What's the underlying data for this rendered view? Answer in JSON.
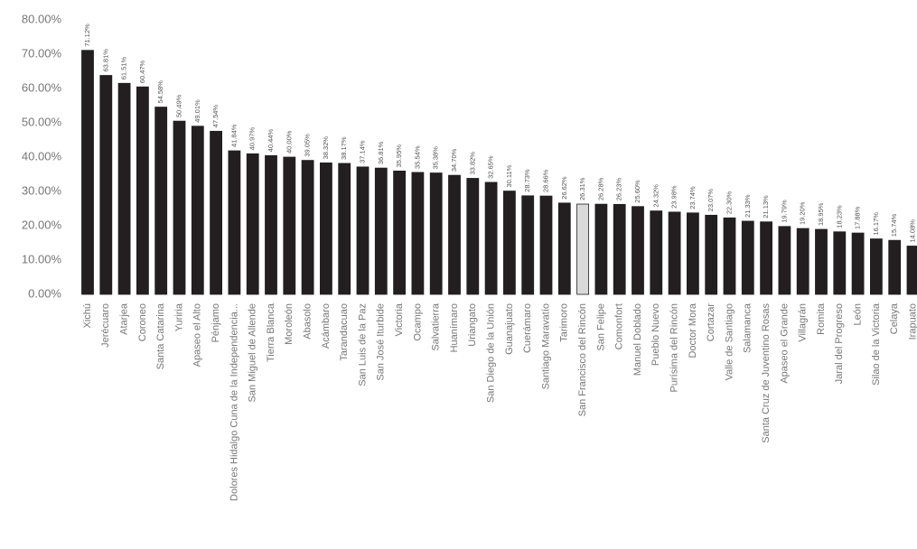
{
  "chart_data": {
    "type": "bar",
    "categories": [
      "Xichú",
      "Jerécuaro",
      "Atarjea",
      "Coroneo",
      "Santa Catarina",
      "Yuriria",
      "Apaseo el Alto",
      "Pénjamo",
      "Dolores Hidalgo Cuna de la Independencia...",
      "San Miguel de Allende",
      "Tierra Blanca",
      "Moroleón",
      "Abasolo",
      "Acámbaro",
      "Tarandacuao",
      "San Luis de la Paz",
      "San José Iturbide",
      "Victoria",
      "Ocampo",
      "Salvatierra",
      "Huanímaro",
      "Uriangato",
      "San Diego de la Unión",
      "Guanajuato",
      "Cuerámaro",
      "Santiago Maravatío",
      "Tarimoro",
      "San Francisco del Rincón",
      "San Felipe",
      "Comonfort",
      "Manuel Doblado",
      "Pueblo Nuevo",
      "Purísima del Rincón",
      "Doctor Mora",
      "Cortazar",
      "Valle de Santiago",
      "Salamanca",
      "Santa Cruz de Juventino Rosas",
      "Apaseo el Grande",
      "Villagrán",
      "Romita",
      "Jaral del Progreso",
      "León",
      "Silao de la Victoria",
      "Celaya",
      "Irapuato"
    ],
    "values": [
      71.12,
      63.81,
      61.51,
      60.47,
      54.58,
      50.49,
      49.01,
      47.54,
      41.84,
      40.97,
      40.44,
      40.0,
      39.05,
      38.32,
      38.17,
      37.14,
      36.81,
      35.95,
      35.54,
      35.38,
      34.7,
      33.82,
      32.65,
      30.11,
      28.73,
      28.66,
      26.62,
      26.31,
      26.28,
      26.23,
      25.6,
      24.32,
      23.98,
      23.74,
      23.07,
      22.3,
      21.33,
      21.13,
      19.79,
      19.2,
      18.95,
      18.23,
      17.88,
      16.17,
      15.74,
      14.08
    ],
    "value_labels": [
      "71.12%",
      "63.81%",
      "61.51%",
      "60.47%",
      "54.58%",
      "50.49%",
      "49.01%",
      "47.54%",
      "41.84%",
      "40.97%",
      "40.44%",
      "40.00%",
      "39.05%",
      "38.32%",
      "38.17%",
      "37.14%",
      "36.81%",
      "35.95%",
      "35.54%",
      "35.38%",
      "34.70%",
      "33.82%",
      "32.65%",
      "30.11%",
      "28.73%",
      "28.66%",
      "26.62%",
      "26.31%",
      "26.28%",
      "26.23%",
      "25.60%",
      "24.32%",
      "23.98%",
      "23.74%",
      "23.07%",
      "22.30%",
      "21.33%",
      "21.13%",
      "19.79%",
      "19.20%",
      "18.95%",
      "18.23%",
      "17.88%",
      "16.17%",
      "15.74%",
      "14.08%"
    ],
    "colors": [
      "#231f20",
      "#231f20",
      "#231f20",
      "#231f20",
      "#231f20",
      "#231f20",
      "#231f20",
      "#231f20",
      "#231f20",
      "#231f20",
      "#231f20",
      "#231f20",
      "#231f20",
      "#231f20",
      "#231f20",
      "#231f20",
      "#231f20",
      "#231f20",
      "#231f20",
      "#231f20",
      "#231f20",
      "#231f20",
      "#231f20",
      "#231f20",
      "#231f20",
      "#231f20",
      "#231f20",
      "#d9d9d9",
      "#231f20",
      "#231f20",
      "#231f20",
      "#231f20",
      "#231f20",
      "#231f20",
      "#231f20",
      "#231f20",
      "#231f20",
      "#231f20",
      "#231f20",
      "#231f20",
      "#231f20",
      "#231f20",
      "#231f20",
      "#231f20",
      "#231f20",
      "#231f20"
    ],
    "ylim": [
      0,
      80
    ],
    "yticks": [
      {
        "value": 0,
        "label": "0.00%"
      },
      {
        "value": 10,
        "label": "10.00%"
      },
      {
        "value": 20,
        "label": "20.00%"
      },
      {
        "value": 30,
        "label": "30.00%"
      },
      {
        "value": 40,
        "label": "40.00%"
      },
      {
        "value": 50,
        "label": "50.00%"
      },
      {
        "value": 60,
        "label": "60.00%"
      },
      {
        "value": 70,
        "label": "70.00%"
      },
      {
        "value": 80,
        "label": "80.00%"
      }
    ],
    "grid": false
  }
}
